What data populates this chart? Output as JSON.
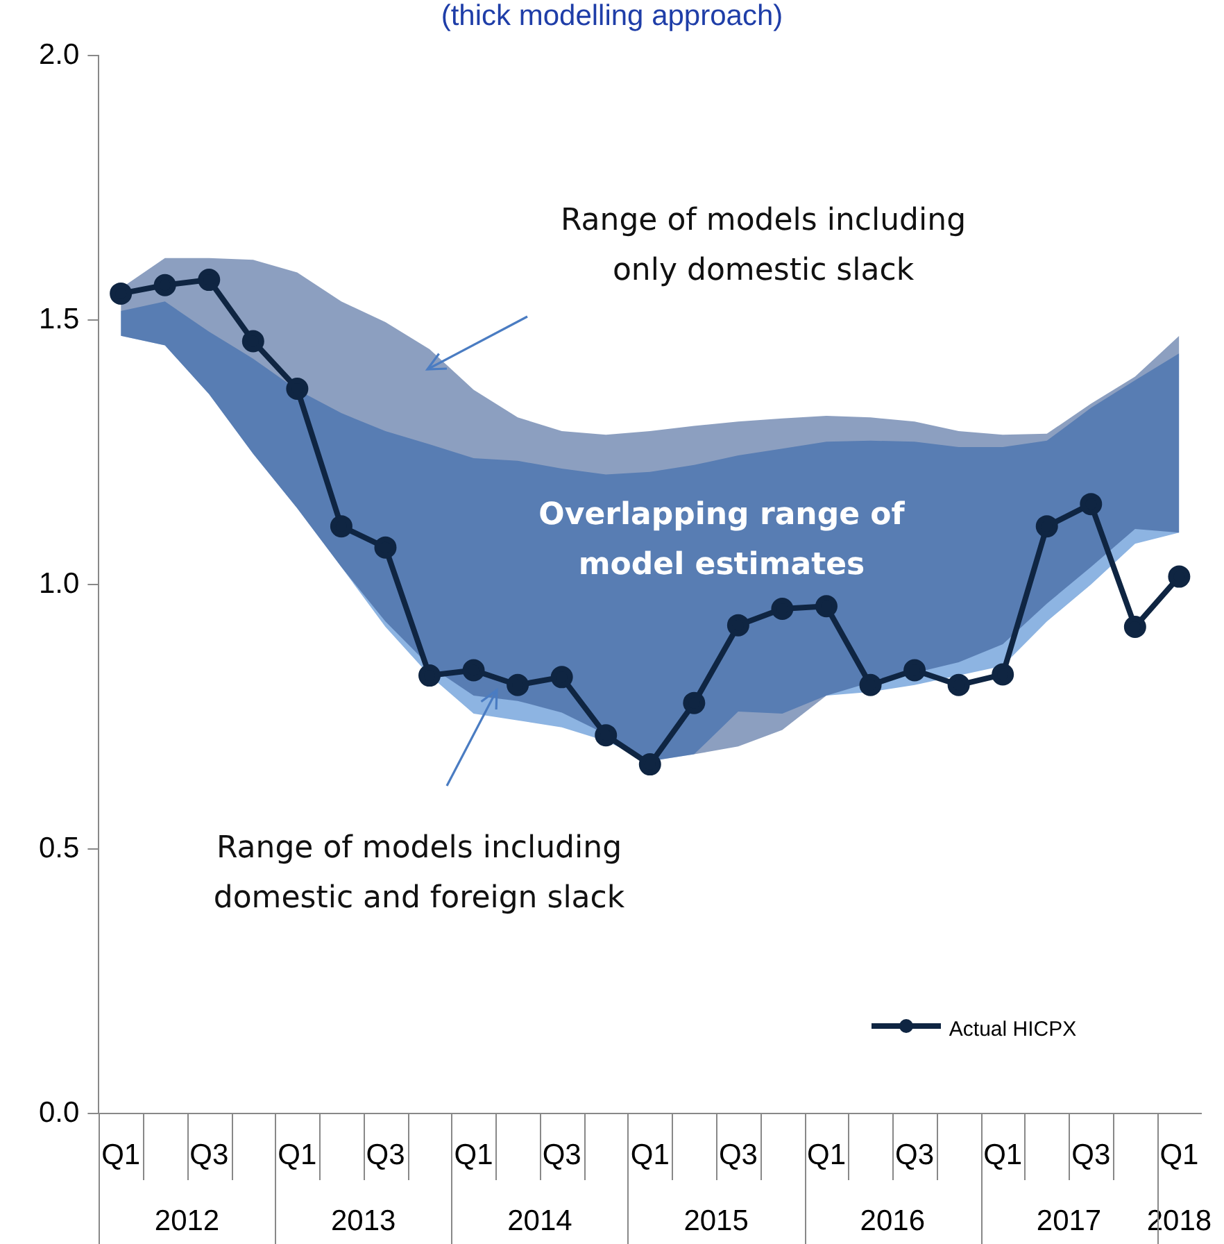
{
  "chart_data": {
    "type": "line",
    "subtitle": "(thick modelling approach)",
    "categories": [
      "Q1",
      null,
      "Q3",
      null,
      "Q1",
      null,
      "Q3",
      null,
      "Q1",
      null,
      "Q3",
      null,
      "Q1",
      null,
      "Q3",
      null,
      "Q1",
      null,
      "Q3",
      null,
      "Q1",
      null,
      "Q3",
      null,
      "Q1"
    ],
    "ylim": [
      0,
      2
    ],
    "yticks": [
      {
        "value": 0,
        "label": "0.0"
      },
      {
        "value": 0.5,
        "label": "0.5"
      },
      {
        "value": 1,
        "label": "1.0"
      },
      {
        "value": 1.5,
        "label": "1.5"
      },
      {
        "value": 2,
        "label": "2.0"
      }
    ],
    "grid": false,
    "legend": "bottom right",
    "series": [
      {
        "color": "#8db4e2",
        "values": [
          null,
          null,
          null,
          null,
          null,
          null,
          null,
          null,
          null,
          null,
          null,
          null,
          null,
          null,
          null,
          null,
          null,
          null,
          null,
          null,
          null,
          null,
          null,
          null,
          null
        ],
        "upper": [
          1.517,
          1.535,
          1.478,
          1.427,
          1.368,
          1.324,
          1.29,
          1.265,
          1.239,
          1.234,
          1.219,
          1.208,
          1.213,
          1.226,
          1.244,
          1.257,
          1.27,
          1.272,
          1.27,
          1.26,
          1.26,
          1.272,
          1.334,
          1.386,
          1.437
        ],
        "lower": [
          1.47,
          1.452,
          1.36,
          1.247,
          1.144,
          1.033,
          0.92,
          0.828,
          0.756,
          0.743,
          0.73,
          0.704,
          0.666,
          0.679,
          0.76,
          0.756,
          0.79,
          0.797,
          0.81,
          0.828,
          0.846,
          0.93,
          1.0,
          1.077,
          1.098
        ]
      },
      {
        "color": "#8c9fc0",
        "values": [
          null,
          null,
          null,
          null,
          null,
          null,
          null,
          null,
          null,
          null,
          null,
          null,
          null,
          null,
          null,
          null,
          null,
          null,
          null,
          null,
          null,
          null,
          null,
          null,
          null
        ],
        "upper": [
          1.56,
          1.617,
          1.617,
          1.614,
          1.59,
          1.535,
          1.496,
          1.445,
          1.368,
          1.316,
          1.29,
          1.283,
          1.29,
          1.3,
          1.308,
          1.314,
          1.319,
          1.316,
          1.308,
          1.29,
          1.283,
          1.285,
          1.342,
          1.393,
          1.47
        ],
        "lower": [
          1.47,
          1.452,
          1.36,
          1.247,
          1.144,
          1.033,
          0.93,
          0.846,
          0.79,
          0.78,
          0.758,
          0.717,
          0.666,
          0.679,
          0.694,
          0.725,
          0.79,
          0.815,
          0.833,
          0.853,
          0.887,
          0.964,
          1.033,
          1.105,
          1.098
        ]
      },
      {
        "name": "Actual HICPX",
        "color": "#0f2542",
        "marker": "circle",
        "values": [
          1.55,
          1.566,
          1.576,
          1.46,
          1.37,
          1.11,
          1.07,
          0.828,
          0.838,
          0.81,
          0.825,
          0.715,
          0.66,
          0.776,
          0.923,
          0.954,
          0.959,
          0.81,
          0.838,
          0.81,
          0.83,
          1.11,
          1.152,
          0.92,
          1.015
        ]
      }
    ],
    "annotations": [
      "Range of models including only domestic slack",
      "Overlapping range of model estimates",
      "Range of models including domestic and foreign slack",
      "2012",
      "2013",
      "2014",
      "2015",
      "2016",
      "2017",
      "2018"
    ]
  }
}
